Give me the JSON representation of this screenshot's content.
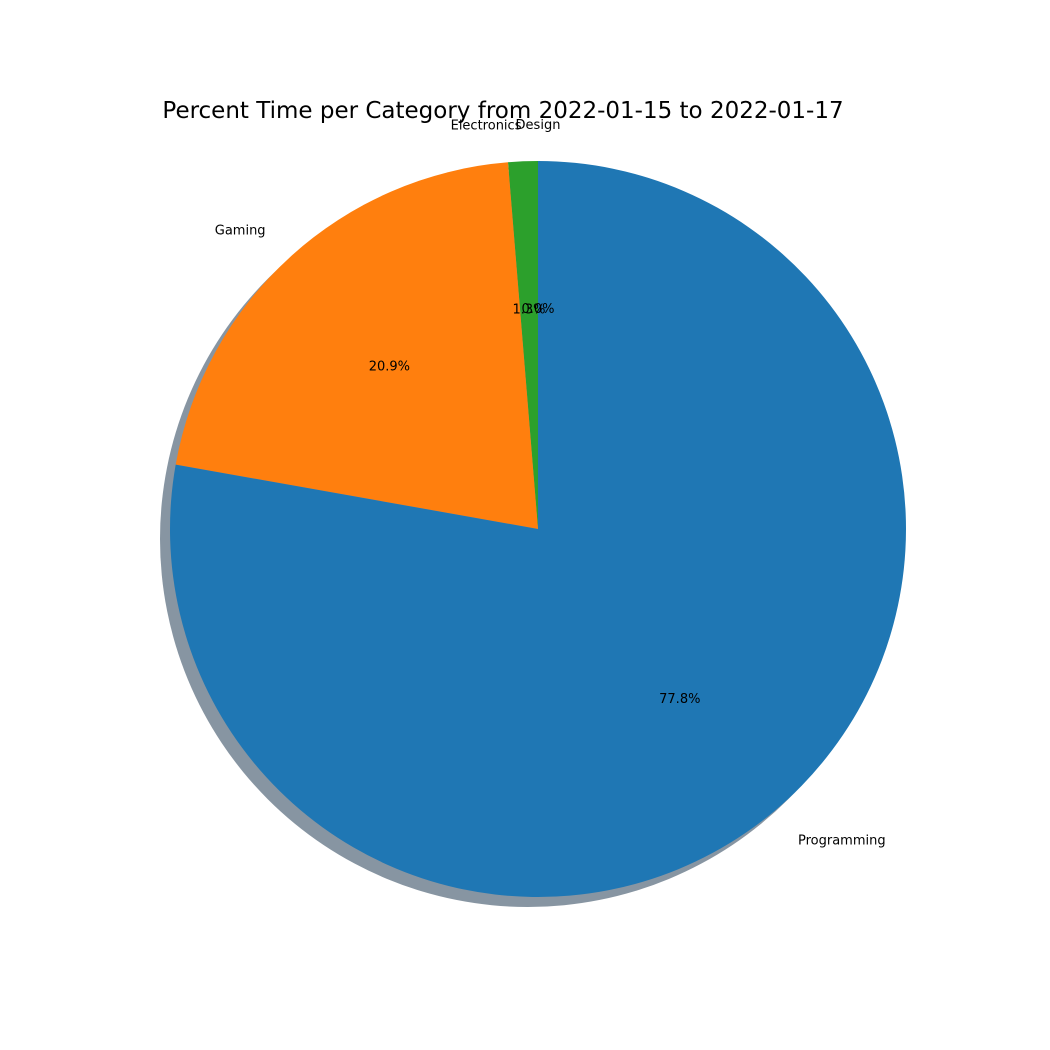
{
  "chart_data": {
    "type": "pie",
    "title": "Percent Time per Category from 2022-01-15 to 2022-01-17",
    "start_angle_deg": 90,
    "direction": "counterclockwise",
    "shadow": true,
    "slices": [
      {
        "label": "Design",
        "value": 0.0,
        "pct_label": "0.0%",
        "color": "#d62728"
      },
      {
        "label": "Electronics",
        "value": 1.3,
        "pct_label": "1.3%",
        "color": "#2ca02c"
      },
      {
        "label": "Gaming",
        "value": 20.9,
        "pct_label": "20.9%",
        "color": "#ff7f0e"
      },
      {
        "label": "Programming",
        "value": 77.8,
        "pct_label": "77.8%",
        "color": "#1f77b4"
      }
    ]
  }
}
